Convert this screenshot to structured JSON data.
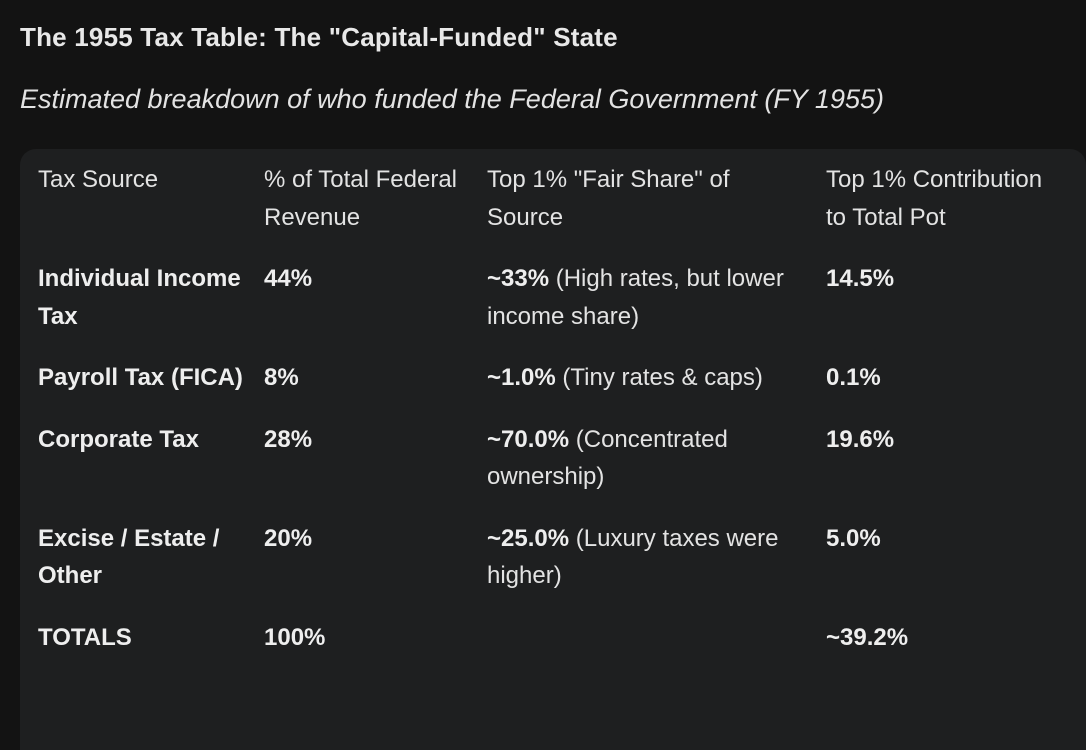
{
  "title": "The 1955 Tax Table: The \"Capital-Funded\" State",
  "subtitle": "Estimated breakdown of who funded the Federal Government (FY 1955)",
  "table": {
    "headers": [
      "Tax Source",
      "% of Total Federal Revenue",
      "Top 1% \"Fair Share\" of Source",
      "Top 1% Contribution to Total Pot"
    ],
    "rows": [
      {
        "source": "Individual Income Tax",
        "pct": "44%",
        "share_value": "~33%",
        "share_note": "(High rates, but lower income share)",
        "contribution": "14.5%"
      },
      {
        "source": "Payroll Tax (FICA)",
        "pct": "8%",
        "share_value": "~1.0%",
        "share_note": "(Tiny rates & caps)",
        "contribution": "0.1%"
      },
      {
        "source": "Corporate Tax",
        "pct": "28%",
        "share_value": "~70.0%",
        "share_note": "(Concentrated ownership)",
        "contribution": "19.6%"
      },
      {
        "source": "Excise / Estate / Other",
        "pct": "20%",
        "share_value": "~25.0%",
        "share_note": "(Luxury taxes were higher)",
        "contribution": "5.0%"
      }
    ],
    "totals": {
      "label": "TOTALS",
      "pct": "100%",
      "share": "",
      "contribution": "~39.2%"
    }
  }
}
